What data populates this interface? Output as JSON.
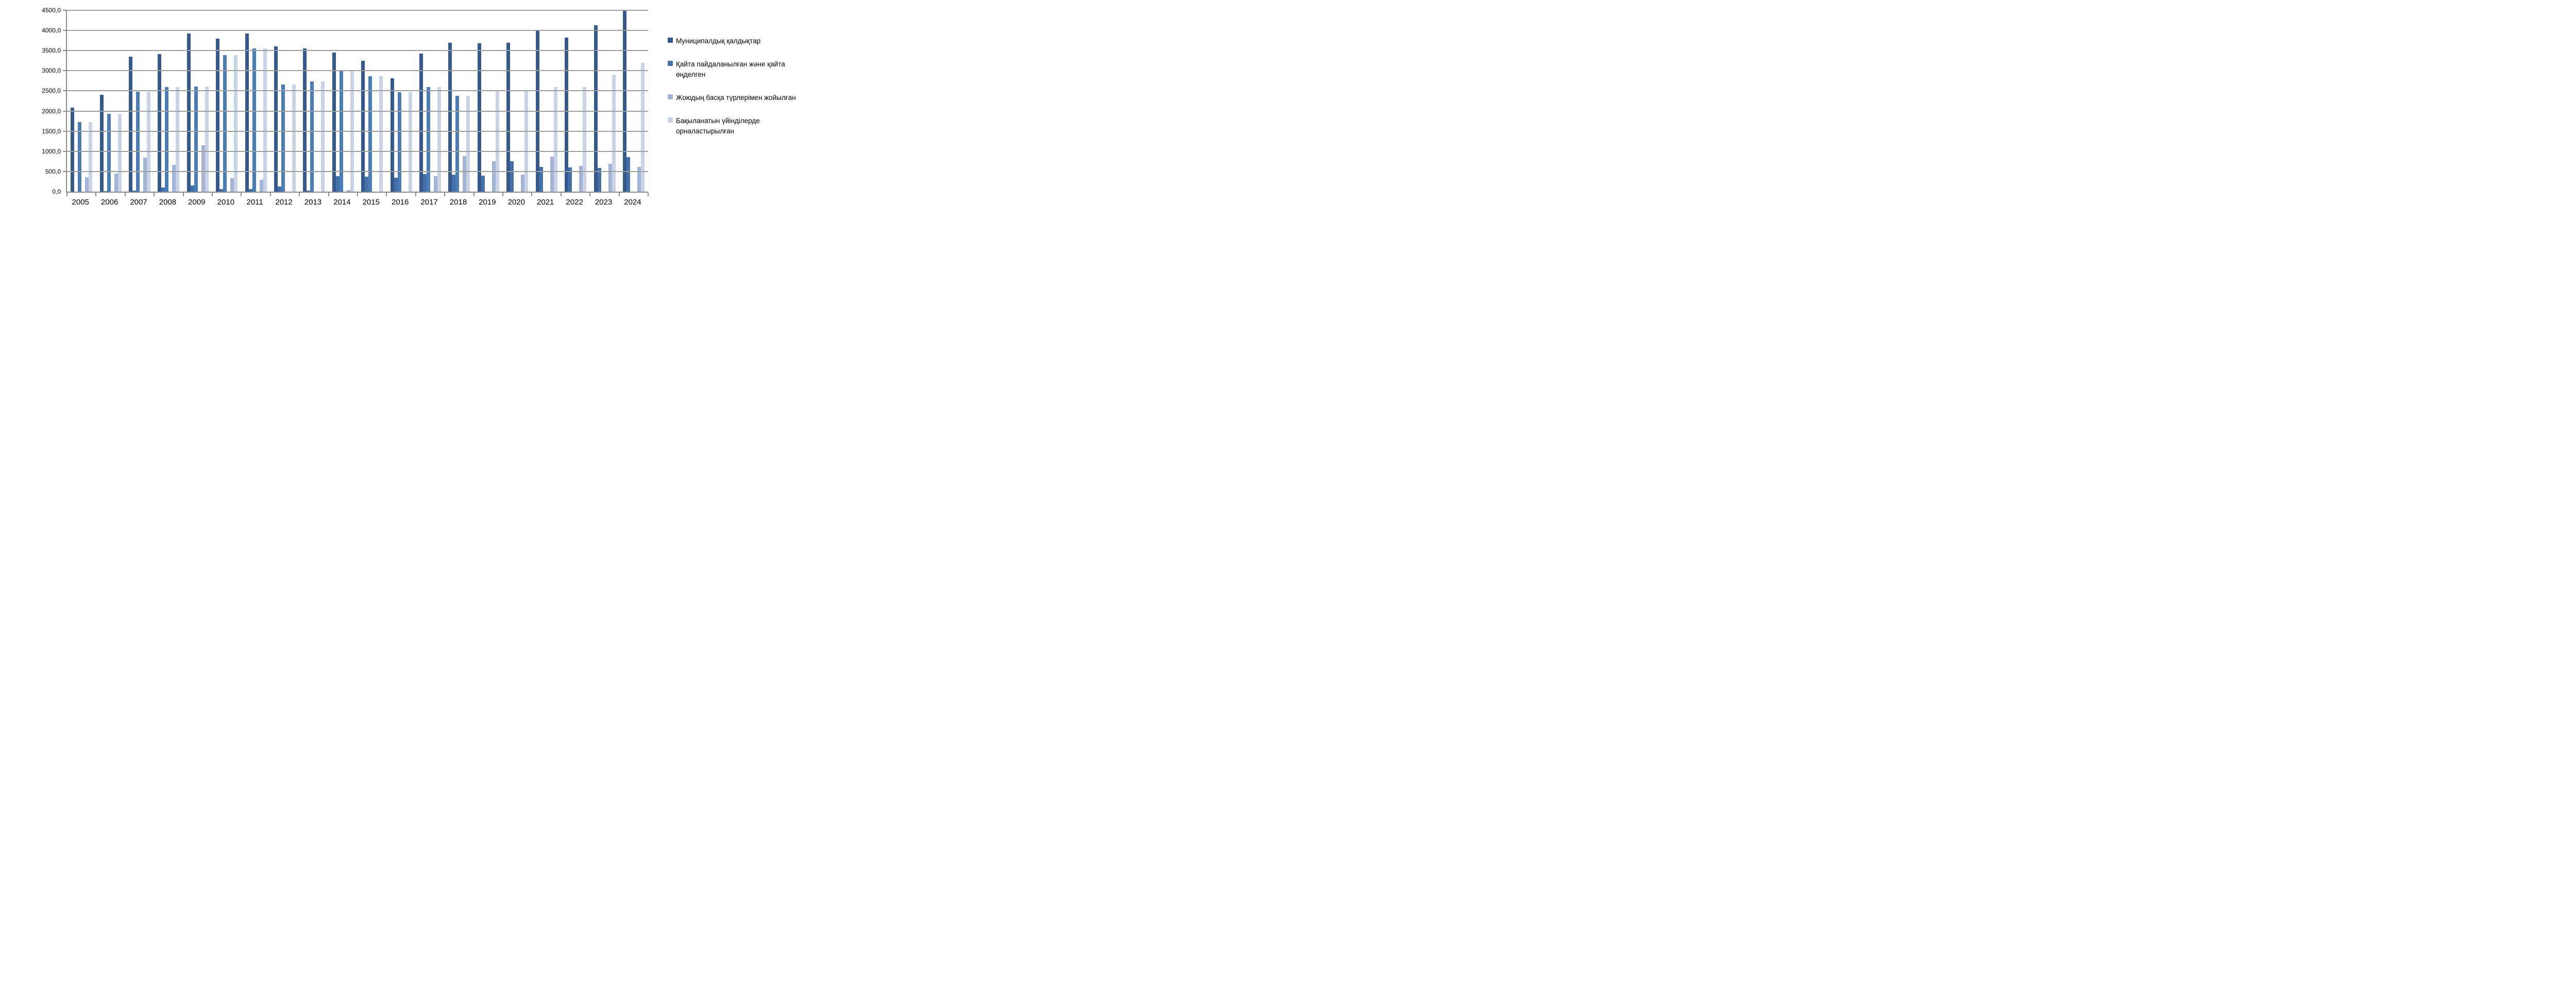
{
  "chart_data": {
    "type": "bar",
    "title": "",
    "xlabel": "",
    "ylabel": "",
    "categories": [
      "2005",
      "2006",
      "2007",
      "2008",
      "2009",
      "2010",
      "2011",
      "2012",
      "2013",
      "2014",
      "2015",
      "2016",
      "2017",
      "2018",
      "2019",
      "2020",
      "2021",
      "2022",
      "2023",
      "2024"
    ],
    "series": [
      {
        "key": "municipal",
        "label": "Муниципалдық қалдықтар",
        "color": "#35598C",
        "in_legend": true,
        "values": [
          2090,
          2400,
          3350,
          3410,
          3930,
          3800,
          3920,
          3600,
          3550,
          3450,
          3250,
          2810,
          3420,
          3690,
          3680,
          3700,
          4000,
          3820,
          4130,
          4500
        ]
      },
      {
        "key": "recycled",
        "label": "Қайта пайдаланылған және қайта өңделген",
        "color": "#4472A8",
        "in_legend": true,
        "values": [
          0,
          10,
          20,
          100,
          150,
          70,
          60,
          130,
          20,
          380,
          370,
          340,
          440,
          420,
          400,
          750,
          620,
          600,
          590,
          860
        ]
      },
      {
        "key": "middle_unlabeled",
        "label": "",
        "color": "#4A7CB8",
        "in_legend": false,
        "values": [
          1720,
          1930,
          2480,
          2600,
          2610,
          3390,
          3560,
          2660,
          2740,
          3020,
          2870,
          2470,
          2600,
          2380,
          0,
          0,
          0,
          0,
          0,
          0
        ]
      },
      {
        "key": "other_disposal",
        "label": "Жоюдың басқа түрлерімен жойылған",
        "color": "#A3B4D6",
        "in_legend": true,
        "values": [
          360,
          450,
          840,
          670,
          1150,
          330,
          300,
          0,
          0,
          40,
          0,
          0,
          380,
          880,
          750,
          420,
          870,
          640,
          690,
          610
        ]
      },
      {
        "key": "landfilled",
        "label": "Бақыланатын үйінділерде орналастырылған",
        "color": "#C8D3E6",
        "in_legend": true,
        "values": [
          1720,
          1930,
          2480,
          2600,
          2610,
          3390,
          3560,
          2660,
          2730,
          3010,
          2860,
          2470,
          2600,
          2380,
          2520,
          2520,
          2590,
          2590,
          2900,
          3190
        ]
      }
    ],
    "bar_slot_order": [
      "municipal",
      "recycled",
      "middle_unlabeled",
      "empty",
      "other_disposal",
      "landfilled"
    ],
    "ylim": [
      0,
      4500
    ],
    "ytick_step": 500,
    "ytick_labels": [
      "4500,0",
      "4000,0",
      "3500,0",
      "3000,0",
      "2500,0",
      "2000,0",
      "1500,0",
      "1000,0",
      "500,0",
      "0,0"
    ],
    "grid": true,
    "legend_position": "right",
    "gridline_color": "#9e9e9e",
    "axis_color": "#8a8a8a"
  },
  "legend": {
    "items": [
      {
        "label": "Муниципалдық қалдықтар",
        "color": "#35598C"
      },
      {
        "label": "Қайта пайдаланылған және қайта өңделген",
        "color": "#4472A8"
      },
      {
        "label": "Жоюдың басқа түрлерімен жойылған",
        "color": "#A3B4D6"
      },
      {
        "label": "Бақыланатын үйінділерде орналастырылған",
        "color": "#C8D3E6"
      }
    ]
  }
}
